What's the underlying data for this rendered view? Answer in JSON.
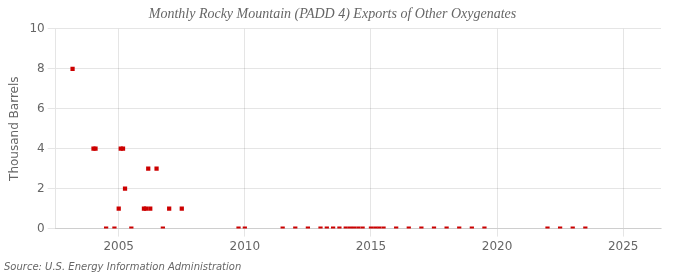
{
  "chart_data": {
    "type": "scatter",
    "title": "Monthly Rocky Mountain (PADD 4) Exports of Other Oxygenates",
    "ylabel": "Thousand Barrels",
    "annotations": [
      "Source: U.S. Energy Information Administration"
    ],
    "x": [
      2003.17,
      2004.0,
      2004.08,
      2004.5,
      2004.83,
      2005.0,
      2005.08,
      2005.17,
      2005.25,
      2005.5,
      2006.0,
      2006.08,
      2006.17,
      2006.25,
      2006.5,
      2006.75,
      2007.0,
      2007.5,
      2009.75,
      2010.0,
      2011.5,
      2012.0,
      2012.5,
      2013.0,
      2013.25,
      2013.5,
      2013.75,
      2014.0,
      2014.17,
      2014.33,
      2014.5,
      2014.67,
      2015.0,
      2015.17,
      2015.33,
      2015.5,
      2016.0,
      2016.5,
      2017.0,
      2017.5,
      2018.0,
      2018.5,
      2019.0,
      2019.5,
      2022.0,
      2022.5,
      2023.0,
      2023.5
    ],
    "values": [
      8,
      4,
      4,
      0,
      0,
      1,
      4,
      4,
      2,
      0,
      1,
      1,
      3,
      1,
      3,
      0,
      1,
      1,
      0,
      0,
      0,
      0,
      0,
      0,
      0,
      0,
      0,
      0,
      0,
      0,
      0,
      0,
      0,
      0,
      0,
      0,
      0,
      0,
      0,
      0,
      0,
      0,
      0,
      0,
      0,
      0,
      0,
      0
    ],
    "color": "#cc0000",
    "marker": "square",
    "xlim": [
      2002.5,
      2026.5
    ],
    "xticks": [
      2005,
      2010,
      2015,
      2020,
      2025
    ],
    "ylim": [
      0,
      10
    ],
    "yticks": [
      0,
      2,
      4,
      6,
      8,
      10
    ],
    "grid": true
  }
}
